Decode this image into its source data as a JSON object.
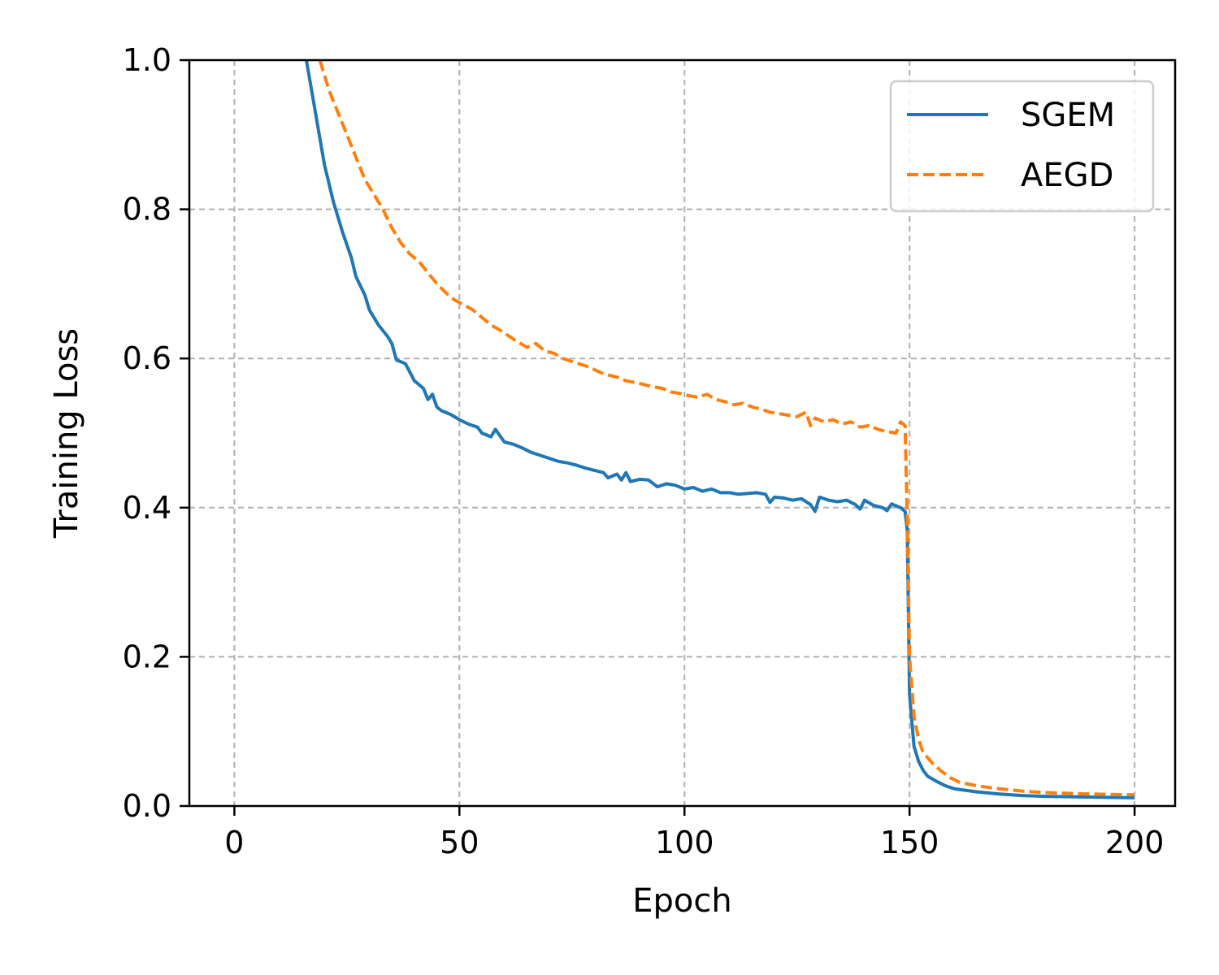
{
  "chart_data": {
    "type": "line",
    "title": "",
    "xlabel": "Epoch",
    "ylabel": "Training Loss",
    "xlim": [
      -10,
      209
    ],
    "ylim": [
      0.0,
      1.0
    ],
    "x_ticks": [
      0,
      50,
      100,
      150,
      200
    ],
    "x_tick_labels": [
      "0",
      "50",
      "100",
      "150",
      "200"
    ],
    "y_ticks": [
      0.0,
      0.2,
      0.4,
      0.6,
      0.8,
      1.0
    ],
    "y_tick_labels": [
      "0.0",
      "0.2",
      "0.4",
      "0.6",
      "0.8",
      "1.0"
    ],
    "grid": true,
    "legend_position": "top-right",
    "series": [
      {
        "name": "SGEM",
        "color": "#1f77b4",
        "style": "solid",
        "points": [
          [
            16,
            1.0
          ],
          [
            18,
            0.93
          ],
          [
            20,
            0.86
          ],
          [
            22,
            0.81
          ],
          [
            24,
            0.77
          ],
          [
            26,
            0.735
          ],
          [
            27,
            0.71
          ],
          [
            29,
            0.685
          ],
          [
            30,
            0.665
          ],
          [
            32,
            0.645
          ],
          [
            34,
            0.63
          ],
          [
            35,
            0.62
          ],
          [
            36,
            0.598
          ],
          [
            38,
            0.593
          ],
          [
            40,
            0.57
          ],
          [
            42,
            0.56
          ],
          [
            43,
            0.545
          ],
          [
            44,
            0.552
          ],
          [
            45,
            0.535
          ],
          [
            46,
            0.53
          ],
          [
            48,
            0.525
          ],
          [
            50,
            0.518
          ],
          [
            52,
            0.512
          ],
          [
            54,
            0.508
          ],
          [
            55,
            0.5
          ],
          [
            57,
            0.495
          ],
          [
            58,
            0.505
          ],
          [
            60,
            0.488
          ],
          [
            62,
            0.485
          ],
          [
            64,
            0.48
          ],
          [
            66,
            0.474
          ],
          [
            68,
            0.47
          ],
          [
            70,
            0.466
          ],
          [
            72,
            0.462
          ],
          [
            74,
            0.46
          ],
          [
            76,
            0.457
          ],
          [
            78,
            0.453
          ],
          [
            80,
            0.45
          ],
          [
            82,
            0.447
          ],
          [
            83,
            0.44
          ],
          [
            85,
            0.445
          ],
          [
            86,
            0.437
          ],
          [
            87,
            0.447
          ],
          [
            88,
            0.435
          ],
          [
            90,
            0.438
          ],
          [
            92,
            0.437
          ],
          [
            94,
            0.428
          ],
          [
            96,
            0.432
          ],
          [
            98,
            0.43
          ],
          [
            100,
            0.425
          ],
          [
            102,
            0.427
          ],
          [
            104,
            0.422
          ],
          [
            106,
            0.425
          ],
          [
            108,
            0.42
          ],
          [
            110,
            0.42
          ],
          [
            112,
            0.418
          ],
          [
            114,
            0.419
          ],
          [
            116,
            0.42
          ],
          [
            118,
            0.418
          ],
          [
            119,
            0.407
          ],
          [
            120,
            0.414
          ],
          [
            122,
            0.413
          ],
          [
            124,
            0.41
          ],
          [
            126,
            0.412
          ],
          [
            128,
            0.404
          ],
          [
            129,
            0.395
          ],
          [
            130,
            0.414
          ],
          [
            132,
            0.41
          ],
          [
            134,
            0.408
          ],
          [
            136,
            0.41
          ],
          [
            138,
            0.404
          ],
          [
            139,
            0.398
          ],
          [
            140,
            0.41
          ],
          [
            142,
            0.403
          ],
          [
            144,
            0.4
          ],
          [
            145,
            0.396
          ],
          [
            146,
            0.405
          ],
          [
            148,
            0.4
          ],
          [
            149,
            0.395
          ],
          [
            149.5,
            0.37
          ],
          [
            150,
            0.15
          ],
          [
            151,
            0.08
          ],
          [
            152,
            0.06
          ],
          [
            153,
            0.048
          ],
          [
            154,
            0.04
          ],
          [
            156,
            0.033
          ],
          [
            158,
            0.027
          ],
          [
            160,
            0.023
          ],
          [
            165,
            0.019
          ],
          [
            170,
            0.016
          ],
          [
            175,
            0.014
          ],
          [
            180,
            0.013
          ],
          [
            190,
            0.012
          ],
          [
            200,
            0.011
          ]
        ]
      },
      {
        "name": "AEGD",
        "color": "#ff7f0e",
        "style": "dashed",
        "points": [
          [
            19,
            1.0
          ],
          [
            21,
            0.96
          ],
          [
            23,
            0.93
          ],
          [
            25,
            0.9
          ],
          [
            27,
            0.87
          ],
          [
            29,
            0.84
          ],
          [
            31,
            0.82
          ],
          [
            33,
            0.8
          ],
          [
            35,
            0.775
          ],
          [
            37,
            0.755
          ],
          [
            39,
            0.74
          ],
          [
            41,
            0.73
          ],
          [
            43,
            0.715
          ],
          [
            45,
            0.7
          ],
          [
            47,
            0.688
          ],
          [
            49,
            0.678
          ],
          [
            51,
            0.672
          ],
          [
            53,
            0.665
          ],
          [
            55,
            0.655
          ],
          [
            57,
            0.645
          ],
          [
            59,
            0.638
          ],
          [
            61,
            0.63
          ],
          [
            63,
            0.622
          ],
          [
            65,
            0.615
          ],
          [
            67,
            0.62
          ],
          [
            69,
            0.61
          ],
          [
            71,
            0.607
          ],
          [
            73,
            0.6
          ],
          [
            75,
            0.596
          ],
          [
            77,
            0.592
          ],
          [
            79,
            0.588
          ],
          [
            81,
            0.582
          ],
          [
            83,
            0.578
          ],
          [
            85,
            0.575
          ],
          [
            87,
            0.57
          ],
          [
            89,
            0.568
          ],
          [
            91,
            0.565
          ],
          [
            93,
            0.562
          ],
          [
            95,
            0.56
          ],
          [
            97,
            0.555
          ],
          [
            99,
            0.553
          ],
          [
            101,
            0.55
          ],
          [
            103,
            0.548
          ],
          [
            105,
            0.552
          ],
          [
            107,
            0.545
          ],
          [
            109,
            0.542
          ],
          [
            111,
            0.538
          ],
          [
            113,
            0.54
          ],
          [
            115,
            0.535
          ],
          [
            117,
            0.532
          ],
          [
            119,
            0.528
          ],
          [
            121,
            0.526
          ],
          [
            123,
            0.524
          ],
          [
            125,
            0.522
          ],
          [
            127,
            0.528
          ],
          [
            128,
            0.51
          ],
          [
            129,
            0.52
          ],
          [
            131,
            0.515
          ],
          [
            133,
            0.518
          ],
          [
            135,
            0.512
          ],
          [
            137,
            0.515
          ],
          [
            139,
            0.508
          ],
          [
            141,
            0.51
          ],
          [
            143,
            0.505
          ],
          [
            145,
            0.502
          ],
          [
            147,
            0.5
          ],
          [
            148,
            0.515
          ],
          [
            149,
            0.51
          ],
          [
            149.5,
            0.39
          ],
          [
            150,
            0.2
          ],
          [
            151,
            0.12
          ],
          [
            152,
            0.09
          ],
          [
            153,
            0.072
          ],
          [
            155,
            0.058
          ],
          [
            157,
            0.047
          ],
          [
            159,
            0.038
          ],
          [
            161,
            0.032
          ],
          [
            165,
            0.027
          ],
          [
            170,
            0.023
          ],
          [
            175,
            0.02
          ],
          [
            180,
            0.018
          ],
          [
            190,
            0.016
          ],
          [
            200,
            0.015
          ]
        ]
      }
    ]
  }
}
